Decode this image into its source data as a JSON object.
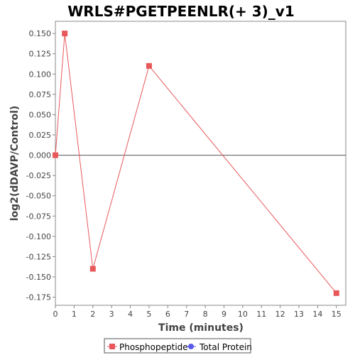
{
  "chart_data": {
    "type": "line",
    "title": "WRLS#PGETPEENLR(+ 3)_v1",
    "xlabel": "Time (minutes)",
    "ylabel": "log2(dDAVP/Control)",
    "xlim": [
      0,
      15.5
    ],
    "ylim": [
      -0.185,
      0.165
    ],
    "x_ticks": [
      0,
      1,
      2,
      3,
      4,
      5,
      6,
      7,
      8,
      9,
      10,
      11,
      12,
      13,
      14,
      15
    ],
    "y_ticks": [
      0.15,
      0.125,
      0.1,
      0.075,
      0.05,
      0.025,
      0.0,
      -0.025,
      -0.05,
      -0.075,
      -0.1,
      -0.125,
      -0.15,
      -0.175
    ],
    "y_tick_labels": [
      "0.150",
      "0.125",
      "0.100",
      "0.075",
      "0.050",
      "0.025",
      "0.000",
      "-0.025",
      "-0.050",
      "-0.075",
      "-0.100",
      "-0.125",
      "-0.150",
      "-0.175"
    ],
    "zero_line": true,
    "grid": false,
    "legend_position": "bottom-center",
    "series": [
      {
        "name": "Phosphopeptide",
        "color": "#e8585a",
        "marker": "square",
        "x": [
          0,
          0.5,
          2,
          5,
          15
        ],
        "y": [
          0.0,
          0.15,
          -0.14,
          0.11,
          -0.17
        ]
      },
      {
        "name": "Total Protein",
        "color": "#5a5ae8",
        "marker": "circle",
        "x": [],
        "y": []
      }
    ]
  }
}
